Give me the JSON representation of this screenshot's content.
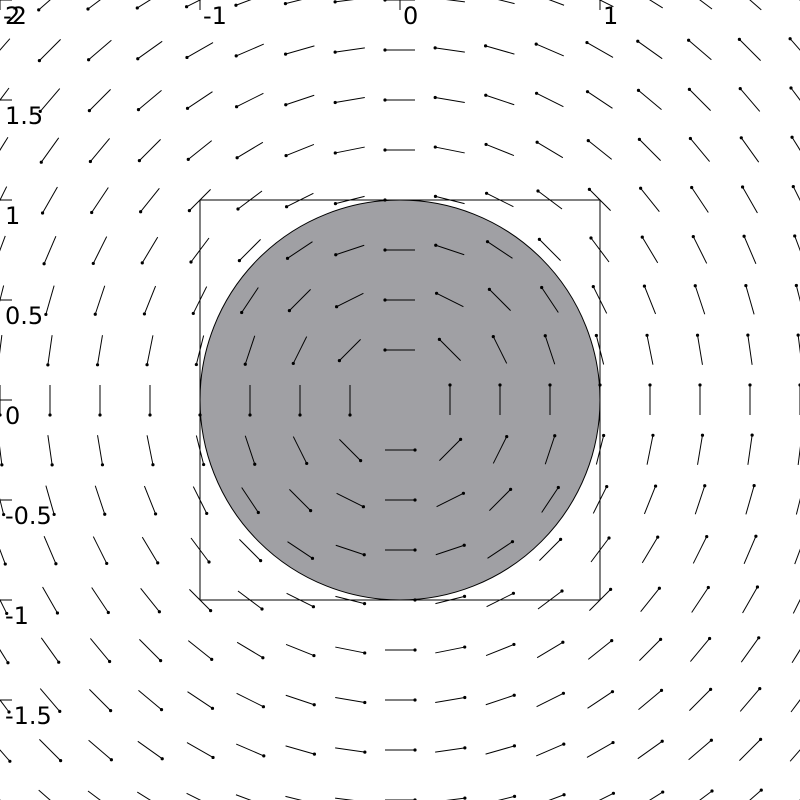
{
  "chart_data": {
    "type": "vector-field",
    "title": "",
    "xlabel": "",
    "ylabel": "",
    "xlim": [
      -2,
      2
    ],
    "ylim": [
      -2,
      2
    ],
    "x_ticks": [
      {
        "value": -2,
        "label": "-2"
      },
      {
        "value": -1,
        "label": "-1"
      },
      {
        "value": 0,
        "label": "0"
      },
      {
        "value": 1,
        "label": "1"
      }
    ],
    "y_ticks": [
      {
        "value": 2,
        "label": "2"
      },
      {
        "value": 1.5,
        "label": "1.5"
      },
      {
        "value": 1,
        "label": "1"
      },
      {
        "value": 0.5,
        "label": "0.5"
      },
      {
        "value": 0,
        "label": "0"
      },
      {
        "value": -0.5,
        "label": "-0.5"
      },
      {
        "value": -1,
        "label": "-1"
      },
      {
        "value": -1.5,
        "label": "-1.5"
      }
    ],
    "grid": false,
    "field": {
      "description_expr": "rotation about origin",
      "grid_x": [
        -2,
        -1.75,
        -1.5,
        -1.25,
        -1,
        -0.75,
        -0.5,
        -0.25,
        0,
        0.25,
        0.5,
        0.75,
        1,
        1.25,
        1.5,
        1.75,
        2
      ],
      "grid_y": [
        -2,
        -1.75,
        -1.5,
        -1.25,
        -1,
        -0.75,
        -0.5,
        -0.25,
        0,
        0.25,
        0.5,
        0.75,
        1,
        1.25,
        1.5,
        1.75,
        2
      ],
      "arrow_length": 0.15,
      "color": "#000000"
    },
    "region_box": {
      "x": [
        -1,
        1
      ],
      "y": [
        -1,
        1
      ],
      "stroke": "#000000"
    },
    "disk": {
      "cx": 0,
      "cy": 0,
      "r": 1,
      "fill": "#a0a0a4",
      "stroke": "#000000"
    }
  }
}
